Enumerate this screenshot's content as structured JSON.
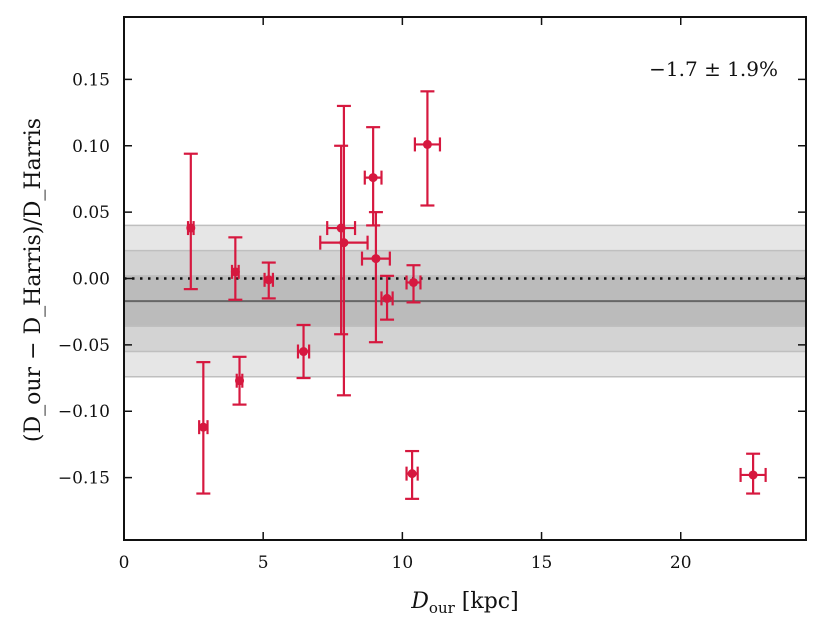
{
  "chart_data": {
    "type": "scatter",
    "title": "",
    "xlabel": "D_our [kpc]",
    "xlabel_main": "D",
    "xlabel_sub": "our",
    "xlabel_unit": " [kpc]",
    "ylabel": "(D_our − D_Harris)/D_Harris",
    "xlim": [
      0,
      24.5
    ],
    "ylim": [
      -0.197,
      0.197
    ],
    "xticks": [
      0,
      5,
      10,
      15,
      20
    ],
    "xtick_labels": [
      "0",
      "5",
      "10",
      "15",
      "20"
    ],
    "yticks": [
      -0.15,
      -0.1,
      -0.05,
      0.0,
      0.05,
      0.1,
      0.15
    ],
    "ytick_labels": [
      "−0.15",
      "−0.10",
      "−0.05",
      "0.00",
      "0.05",
      "0.10",
      "0.15"
    ],
    "annotation": "−1.7 ± 1.9%",
    "mean_line": -0.017,
    "zero_line": 0.0,
    "bands": [
      {
        "label": "3-sigma",
        "low": -0.074,
        "high": 0.04
      },
      {
        "label": "2-sigma",
        "low": -0.055,
        "high": 0.021
      },
      {
        "label": "1-sigma",
        "low": -0.036,
        "high": 0.002
      }
    ],
    "colors": {
      "points": "#d6183f",
      "band_outer": "#e6e6e6",
      "band_mid": "#d3d3d3",
      "band_inner": "#bbbbbb",
      "mean": "#666666",
      "zero": "#111111"
    },
    "points": [
      {
        "x": 2.4,
        "y": 0.038,
        "xerr": 0.1,
        "ylo": -0.008,
        "yhi": 0.094
      },
      {
        "x": 2.85,
        "y": -0.112,
        "xerr": 0.15,
        "ylo": -0.162,
        "yhi": -0.063
      },
      {
        "x": 4.0,
        "y": 0.005,
        "xerr": 0.12,
        "ylo": -0.016,
        "yhi": 0.031
      },
      {
        "x": 4.15,
        "y": -0.077,
        "xerr": 0.1,
        "ylo": -0.095,
        "yhi": -0.059
      },
      {
        "x": 5.2,
        "y": -0.001,
        "xerr": 0.15,
        "ylo": -0.015,
        "yhi": 0.012
      },
      {
        "x": 6.45,
        "y": -0.055,
        "xerr": 0.2,
        "ylo": -0.075,
        "yhi": -0.035
      },
      {
        "x": 7.8,
        "y": 0.038,
        "xerr": 0.5,
        "ylo": -0.042,
        "yhi": 0.1
      },
      {
        "x": 7.9,
        "y": 0.027,
        "xerr": 0.85,
        "ylo": -0.088,
        "yhi": 0.13
      },
      {
        "x": 8.95,
        "y": 0.076,
        "xerr": 0.3,
        "ylo": 0.04,
        "yhi": 0.114
      },
      {
        "x": 9.05,
        "y": 0.015,
        "xerr": 0.5,
        "ylo": -0.048,
        "yhi": 0.05
      },
      {
        "x": 9.45,
        "y": -0.015,
        "xerr": 0.2,
        "ylo": -0.031,
        "yhi": 0.002
      },
      {
        "x": 10.35,
        "y": -0.147,
        "xerr": 0.2,
        "ylo": -0.166,
        "yhi": -0.13
      },
      {
        "x": 10.4,
        "y": -0.003,
        "xerr": 0.25,
        "ylo": -0.018,
        "yhi": 0.01
      },
      {
        "x": 10.9,
        "y": 0.101,
        "xerr": 0.45,
        "ylo": 0.055,
        "yhi": 0.141
      },
      {
        "x": 22.6,
        "y": -0.148,
        "xerr": 0.45,
        "ylo": -0.162,
        "yhi": -0.132
      }
    ]
  }
}
